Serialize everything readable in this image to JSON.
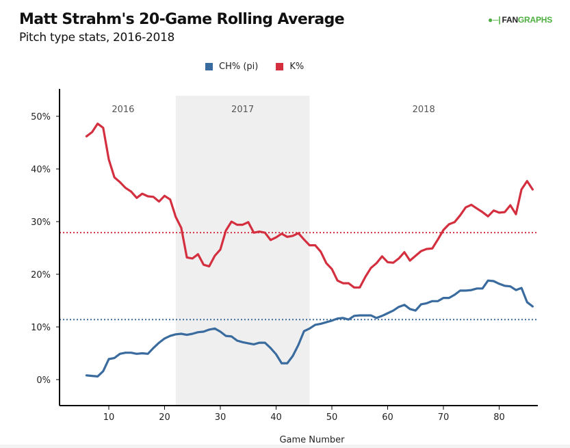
{
  "header": {
    "title": "Matt Strahm's 20-Game Rolling Average",
    "subtitle": "Pitch type stats, 2016-2018",
    "logo_left": "FAN",
    "logo_right": "GRAPHS",
    "logo_mark": ".ᴊ|"
  },
  "colors": {
    "ch": "#3a6b9e",
    "k": "#d42f3f",
    "shade": "#efefef",
    "logo_green": "#4cae3f"
  },
  "chart_data": {
    "type": "line",
    "title": "Matt Strahm's 20-Game Rolling Average",
    "subtitle": "Pitch type stats, 2016-2018",
    "xlabel": "Game Number",
    "ylabel": "",
    "xlim": [
      1,
      87
    ],
    "ylim": [
      -5,
      52
    ],
    "x_ticks": [
      10,
      20,
      30,
      40,
      50,
      60,
      70,
      80
    ],
    "x_tick_labels": [
      "10",
      "20",
      "30",
      "40",
      "50",
      "60",
      "70",
      "80"
    ],
    "y_ticks": [
      0,
      10,
      20,
      30,
      40,
      50
    ],
    "y_tick_labels": [
      "0%",
      "10%",
      "20%",
      "30%",
      "40%",
      "50%"
    ],
    "grid": false,
    "legend_position": "top-center",
    "legend": [
      {
        "name": "CH% (pi)",
        "color": "#3a6b9e"
      },
      {
        "name": "K%",
        "color": "#d42f3f"
      }
    ],
    "season_bands": [
      {
        "label": "2016",
        "start": 1,
        "end": 22,
        "shaded": false
      },
      {
        "label": "2017",
        "start": 22,
        "end": 46,
        "shaded": true
      },
      {
        "label": "2018",
        "start": 46,
        "end": 87,
        "shaded": false
      }
    ],
    "reference_lines": [
      {
        "series": "K%",
        "value": 27.9,
        "style": "dotted"
      },
      {
        "series": "CH% (pi)",
        "value": 11.4,
        "style": "dotted"
      }
    ],
    "x": [
      6,
      7,
      8,
      9,
      10,
      11,
      12,
      13,
      14,
      15,
      16,
      17,
      18,
      19,
      20,
      21,
      22,
      23,
      24,
      25,
      26,
      27,
      28,
      29,
      30,
      31,
      32,
      33,
      34,
      35,
      36,
      37,
      38,
      39,
      40,
      41,
      42,
      43,
      44,
      45,
      46,
      47,
      48,
      49,
      50,
      51,
      52,
      53,
      54,
      55,
      56,
      57,
      58,
      59,
      60,
      61,
      62,
      63,
      64,
      65,
      66,
      67,
      68,
      69,
      70,
      71,
      72,
      73,
      74,
      75,
      76,
      77,
      78,
      79,
      80,
      81,
      82,
      83,
      84,
      85,
      86
    ],
    "series": [
      {
        "name": "CH% (pi)",
        "color": "#3a6b9e",
        "values": [
          0.8,
          0.7,
          0.6,
          1.6,
          3.9,
          4.1,
          4.9,
          5.1,
          5.1,
          4.9,
          5.0,
          4.9,
          6.0,
          7.0,
          7.8,
          8.3,
          8.6,
          8.7,
          8.5,
          8.7,
          9.0,
          9.1,
          9.5,
          9.7,
          9.1,
          8.3,
          8.2,
          7.4,
          7.1,
          6.9,
          6.7,
          7.0,
          7.0,
          6.0,
          4.8,
          3.1,
          3.1,
          4.5,
          6.6,
          9.2,
          9.7,
          10.4,
          10.6,
          10.9,
          11.2,
          11.6,
          11.7,
          11.4,
          12.1,
          12.2,
          12.2,
          12.2,
          11.7,
          12.1,
          12.6,
          13.1,
          13.8,
          14.2,
          13.4,
          13.1,
          14.3,
          14.5,
          14.9,
          14.9,
          15.5,
          15.5,
          16.1,
          16.9,
          16.9,
          17.0,
          17.3,
          17.3,
          18.8,
          18.7,
          18.2,
          17.8,
          17.7,
          17.0,
          17.4,
          14.7,
          13.9
        ]
      },
      {
        "name": "K%",
        "color": "#d42f3f",
        "values": [
          46.2,
          47.0,
          48.6,
          47.8,
          41.8,
          38.4,
          37.5,
          36.4,
          35.7,
          34.5,
          35.3,
          34.8,
          34.7,
          33.8,
          34.9,
          34.2,
          30.9,
          28.8,
          23.2,
          23.0,
          23.8,
          21.8,
          21.5,
          23.5,
          24.7,
          28.3,
          30.0,
          29.4,
          29.4,
          29.9,
          27.9,
          28.1,
          27.9,
          26.5,
          27.0,
          27.7,
          27.1,
          27.3,
          27.8,
          26.6,
          25.5,
          25.5,
          24.3,
          22.1,
          21.0,
          18.8,
          18.3,
          18.3,
          17.5,
          17.5,
          19.5,
          21.2,
          22.1,
          23.4,
          22.3,
          22.2,
          23.0,
          24.2,
          22.6,
          23.5,
          24.4,
          24.8,
          24.9,
          26.6,
          28.4,
          29.5,
          29.9,
          31.2,
          32.7,
          33.2,
          32.5,
          31.8,
          31.0,
          32.1,
          31.7,
          31.8,
          33.1,
          31.4,
          36.1,
          37.7,
          36.1
        ]
      }
    ]
  }
}
